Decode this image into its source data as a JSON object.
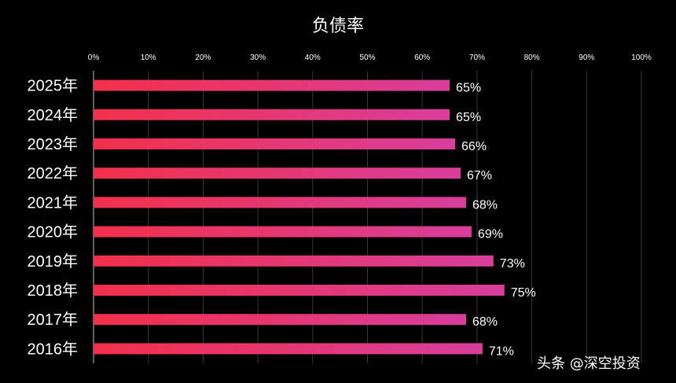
{
  "chart_data": {
    "type": "bar",
    "orientation": "horizontal",
    "title": "负债率",
    "xlabel": "",
    "ylabel": "",
    "xlim": [
      0,
      100
    ],
    "x_ticks": [
      0,
      10,
      20,
      30,
      40,
      50,
      60,
      70,
      80,
      90,
      100
    ],
    "tick_suffix": "%",
    "x_axis_position": "top",
    "grid": true,
    "categories": [
      "2025年",
      "2024年",
      "2023年",
      "2022年",
      "2021年",
      "2020年",
      "2019年",
      "2018年",
      "2017年",
      "2016年"
    ],
    "values": [
      65,
      65,
      66,
      67,
      68,
      69,
      73,
      75,
      68,
      71
    ],
    "value_labels": [
      "65%",
      "65%",
      "66%",
      "67%",
      "68%",
      "69%",
      "73%",
      "75%",
      "68%",
      "71%"
    ],
    "colors": {
      "bar_start": "#f2304a",
      "bar_end": "#d83e9c",
      "background": "#000000",
      "grid": "#3a3a3a",
      "text": "#ffffff"
    }
  },
  "watermark": "头条 @深空投资"
}
